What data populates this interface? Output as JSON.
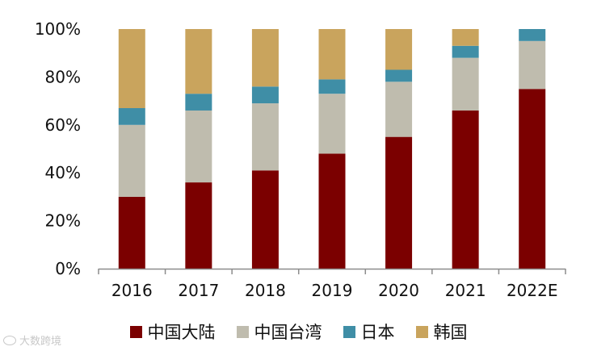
{
  "chart_data": {
    "type": "bar",
    "stacked": true,
    "categories": [
      "2016",
      "2017",
      "2018",
      "2019",
      "2020",
      "2021",
      "2022E"
    ],
    "series": [
      {
        "name": "中国大陆",
        "color": "#7b0000",
        "values": [
          30,
          36,
          41,
          48,
          55,
          66,
          75
        ]
      },
      {
        "name": "中国台湾",
        "color": "#bfbcae",
        "values": [
          30,
          30,
          28,
          25,
          23,
          22,
          20
        ]
      },
      {
        "name": "日本",
        "color": "#3f8ea6",
        "values": [
          7,
          7,
          7,
          6,
          5,
          5,
          5
        ]
      },
      {
        "name": "韩国",
        "color": "#c9a45d",
        "values": [
          33,
          27,
          24,
          21,
          17,
          7,
          0
        ]
      }
    ],
    "y_ticks": [
      "0%",
      "20%",
      "40%",
      "60%",
      "80%",
      "100%"
    ],
    "ylim": [
      0,
      100
    ],
    "legend_position": "bottom"
  },
  "watermark": {
    "text": "大数跨境"
  }
}
